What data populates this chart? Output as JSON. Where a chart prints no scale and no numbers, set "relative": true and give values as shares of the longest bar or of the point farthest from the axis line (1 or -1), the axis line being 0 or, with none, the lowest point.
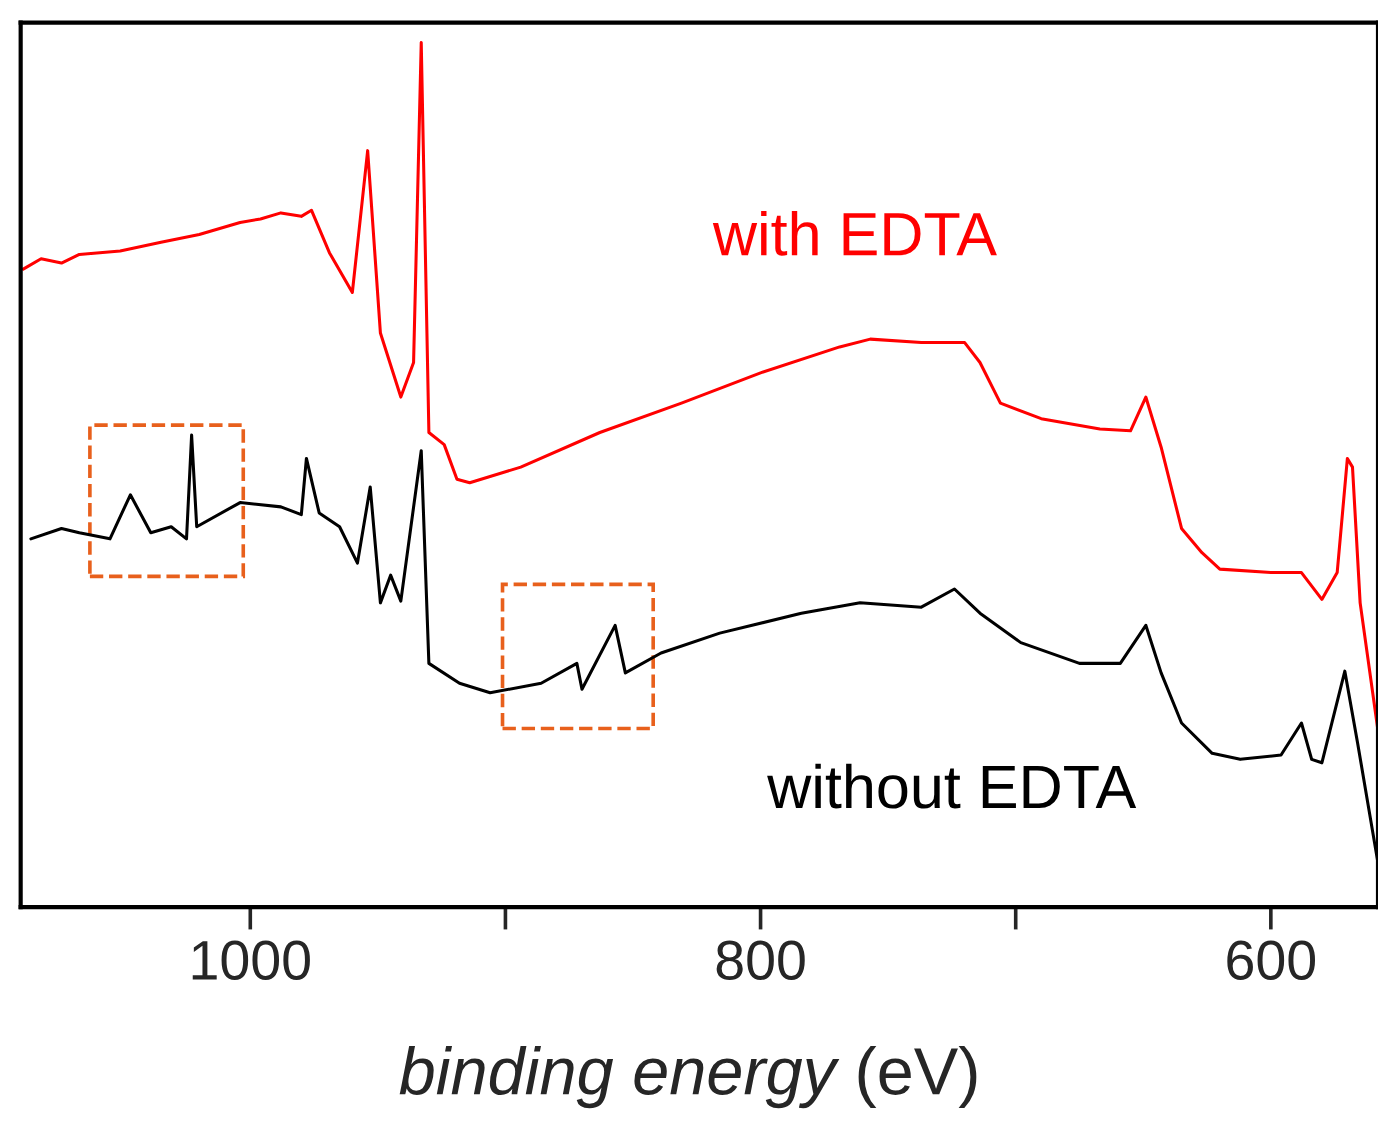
{
  "chart_data": {
    "type": "line",
    "relative": true,
    "xlabel": "binding energy (eV)",
    "xlim": [
      1090,
      558
    ],
    "xticks": [
      1000,
      {
        "value": 900,
        "label": null
      },
      800,
      {
        "value": 700,
        "label": null
      },
      600
    ],
    "line_style": "solid",
    "marker": "none",
    "grid": false,
    "legend": false,
    "series": [
      {
        "name": "with EDTA",
        "color": "#ff0000",
        "x": [
          1089,
          1082,
          1074,
          1067,
          1051,
          1035,
          1020,
          1004,
          996,
          988,
          980,
          976,
          969,
          960,
          954,
          949,
          941,
          936,
          933,
          930,
          924,
          919,
          914,
          894,
          863,
          831,
          800,
          769,
          757,
          737,
          720,
          714,
          706,
          690,
          667,
          655,
          649,
          643,
          635,
          627,
          620,
          600,
          588,
          580,
          574,
          570,
          568,
          565,
          558
        ],
        "values": [
          0.738,
          0.75,
          0.745,
          0.755,
          0.759,
          0.769,
          0.778,
          0.792,
          0.796,
          0.803,
          0.799,
          0.806,
          0.757,
          0.711,
          0.875,
          0.664,
          0.59,
          0.63,
          1.0,
          0.549,
          0.535,
          0.495,
          0.491,
          0.509,
          0.549,
          0.583,
          0.618,
          0.648,
          0.657,
          0.653,
          0.653,
          0.63,
          0.583,
          0.565,
          0.553,
          0.551,
          0.59,
          0.532,
          0.438,
          0.41,
          0.391,
          0.387,
          0.387,
          0.356,
          0.387,
          0.519,
          0.509,
          0.352,
          0.204
        ]
      },
      {
        "name": "without EDTA",
        "color": "#000000",
        "x": [
          1086,
          1074,
          1067,
          1055,
          1047,
          1039,
          1031,
          1025,
          1023,
          1021,
          1004,
          988,
          980,
          978,
          973,
          965,
          958,
          953,
          949,
          945,
          941,
          933,
          930,
          918,
          906,
          886,
          872,
          870,
          857,
          853,
          839,
          816,
          784,
          761,
          737,
          724,
          714,
          698,
          675,
          659,
          649,
          643,
          635,
          623,
          612,
          596,
          588,
          584,
          580,
          571,
          566,
          558
        ],
        "values": [
          0.426,
          0.438,
          0.433,
          0.426,
          0.477,
          0.433,
          0.44,
          0.426,
          0.546,
          0.44,
          0.468,
          0.463,
          0.454,
          0.519,
          0.456,
          0.44,
          0.398,
          0.486,
          0.352,
          0.384,
          0.354,
          0.528,
          0.282,
          0.259,
          0.248,
          0.259,
          0.282,
          0.252,
          0.326,
          0.271,
          0.294,
          0.317,
          0.34,
          0.352,
          0.347,
          0.368,
          0.34,
          0.306,
          0.282,
          0.282,
          0.326,
          0.271,
          0.213,
          0.178,
          0.171,
          0.176,
          0.213,
          0.171,
          0.167,
          0.273,
          0.19,
          0.051
        ]
      }
    ]
  }
}
